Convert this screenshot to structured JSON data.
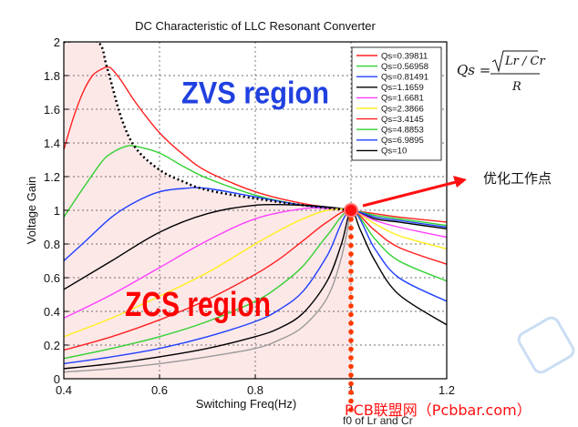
{
  "chart_data": {
    "type": "line",
    "title": "DC Characteristic of LLC Resonant Converter",
    "xlabel": "Switching Freq(Hz)",
    "ylabel": "Voltage Gain",
    "xlim": [
      0.4,
      1.2
    ],
    "ylim": [
      0,
      2
    ],
    "x_ticks": [
      "0.4",
      "0.6",
      "0.8",
      "1",
      "1.2"
    ],
    "y_ticks": [
      "0",
      "0.2",
      "0.4",
      "0.6",
      "0.8",
      "1",
      "1.2",
      "1.4",
      "1.6",
      "1.8",
      "2"
    ],
    "grid": true,
    "legend_position": "top-right",
    "series": [
      {
        "name": "Qs=0.39811",
        "color": "#ff2020",
        "x": [
          0.4,
          0.42,
          0.44,
          0.46,
          0.48,
          0.49,
          0.5,
          0.52,
          0.55,
          0.6,
          0.65,
          0.7,
          0.8,
          0.9,
          1.0,
          1.05,
          1.1,
          1.2
        ],
        "y": [
          1.36,
          1.55,
          1.7,
          1.8,
          1.84,
          1.85,
          1.84,
          1.77,
          1.64,
          1.46,
          1.33,
          1.23,
          1.11,
          1.04,
          1.0,
          0.98,
          0.96,
          0.93
        ]
      },
      {
        "name": "Qs=0.56958",
        "color": "#30d030",
        "x": [
          0.4,
          0.44,
          0.48,
          0.5,
          0.53,
          0.55,
          0.6,
          0.65,
          0.7,
          0.8,
          0.9,
          1.0,
          1.05,
          1.1,
          1.2
        ],
        "y": [
          0.96,
          1.13,
          1.29,
          1.34,
          1.38,
          1.38,
          1.34,
          1.26,
          1.19,
          1.09,
          1.03,
          1.0,
          0.97,
          0.95,
          0.91
        ]
      },
      {
        "name": "Qs=0.81491",
        "color": "#2040ff",
        "x": [
          0.4,
          0.45,
          0.5,
          0.55,
          0.6,
          0.65,
          0.7,
          0.8,
          0.9,
          1.0,
          1.05,
          1.1,
          1.2
        ],
        "y": [
          0.7,
          0.83,
          0.96,
          1.05,
          1.11,
          1.13,
          1.13,
          1.08,
          1.03,
          1.0,
          0.96,
          0.94,
          0.9
        ]
      },
      {
        "name": "Qs=1.1659",
        "color": "#000000",
        "x": [
          0.4,
          0.5,
          0.6,
          0.7,
          0.8,
          0.9,
          0.95,
          1.0,
          1.05,
          1.1,
          1.2
        ],
        "y": [
          0.53,
          0.7,
          0.87,
          0.98,
          1.03,
          1.03,
          1.02,
          1.0,
          0.95,
          0.93,
          0.89
        ]
      },
      {
        "name": "Qs=1.6681",
        "color": "#ff40ff",
        "x": [
          0.4,
          0.5,
          0.6,
          0.7,
          0.8,
          0.9,
          0.95,
          1.0,
          1.05,
          1.1,
          1.2
        ],
        "y": [
          0.36,
          0.5,
          0.66,
          0.82,
          0.95,
          1.01,
          1.01,
          1.0,
          0.94,
          0.9,
          0.84
        ]
      },
      {
        "name": "Qs=2.3866",
        "color": "#ffee20",
        "x": [
          0.4,
          0.5,
          0.6,
          0.7,
          0.8,
          0.85,
          0.9,
          0.95,
          1.0,
          1.05,
          1.1,
          1.2
        ],
        "y": [
          0.25,
          0.36,
          0.49,
          0.63,
          0.8,
          0.88,
          0.95,
          1.0,
          1.0,
          0.92,
          0.85,
          0.77
        ]
      },
      {
        "name": "Qs=3.4145",
        "color": "#ff2020",
        "x": [
          0.4,
          0.5,
          0.6,
          0.7,
          0.8,
          0.85,
          0.9,
          0.95,
          1.0,
          1.05,
          1.1,
          1.2
        ],
        "y": [
          0.17,
          0.25,
          0.35,
          0.47,
          0.62,
          0.71,
          0.82,
          0.93,
          1.0,
          0.88,
          0.78,
          0.68
        ]
      },
      {
        "name": "Qs=4.8853",
        "color": "#30d030",
        "x": [
          0.4,
          0.5,
          0.6,
          0.7,
          0.8,
          0.85,
          0.9,
          0.95,
          1.0,
          1.05,
          1.1,
          1.2
        ],
        "y": [
          0.12,
          0.18,
          0.25,
          0.34,
          0.46,
          0.55,
          0.67,
          0.85,
          1.0,
          0.83,
          0.7,
          0.58
        ]
      },
      {
        "name": "Qs=6.9895",
        "color": "#2040ff",
        "x": [
          0.4,
          0.5,
          0.6,
          0.7,
          0.8,
          0.85,
          0.9,
          0.95,
          1.0,
          1.05,
          1.1,
          1.2
        ],
        "y": [
          0.09,
          0.13,
          0.18,
          0.25,
          0.34,
          0.41,
          0.52,
          0.73,
          1.0,
          0.77,
          0.6,
          0.46
        ]
      },
      {
        "name": "Qs=10",
        "color": "#000000",
        "x": [
          0.4,
          0.5,
          0.6,
          0.7,
          0.8,
          0.85,
          0.9,
          0.95,
          0.98,
          1.0,
          1.02,
          1.05,
          1.1,
          1.2
        ],
        "y": [
          0.06,
          0.09,
          0.13,
          0.18,
          0.25,
          0.3,
          0.39,
          0.58,
          0.8,
          1.0,
          0.88,
          0.7,
          0.5,
          0.32
        ]
      },
      {
        "name": "",
        "color": "#999999",
        "x": [
          0.4,
          0.5,
          0.6,
          0.7,
          0.8,
          0.85,
          0.9,
          0.95,
          0.98,
          1.0
        ],
        "y": [
          0.04,
          0.06,
          0.09,
          0.13,
          0.18,
          0.23,
          0.31,
          0.48,
          0.72,
          1.0
        ]
      }
    ],
    "boundary": {
      "style": "dotted",
      "color": "#000000",
      "x": [
        0.4,
        0.47,
        0.49,
        0.52,
        0.55,
        0.6,
        0.65,
        0.7,
        0.8,
        0.9,
        1.0
      ],
      "y": [
        2.0,
        2.0,
        1.85,
        1.55,
        1.37,
        1.24,
        1.17,
        1.12,
        1.07,
        1.03,
        1.0
      ]
    },
    "optimal_point": {
      "x": 1.0,
      "y": 1.0,
      "label": "优化工作点",
      "color": "#ff2020"
    },
    "vertical_marker": {
      "x": 1.0,
      "label": "f0 of Lr and Cr"
    },
    "region_labels": {
      "zvs": {
        "text": "ZVS region",
        "color": "#2040e0",
        "x": 0.8,
        "y": 1.7
      },
      "zcs": {
        "text": "ZCS region",
        "color": "#ff0000",
        "x": 0.68,
        "y": 0.45
      }
    },
    "formula": {
      "lhs": "Qs =",
      "numerator": "Lr / Cr",
      "denominator": "R"
    }
  },
  "watermark": {
    "text": "PCB联盟网（Pcbbar.com）"
  }
}
